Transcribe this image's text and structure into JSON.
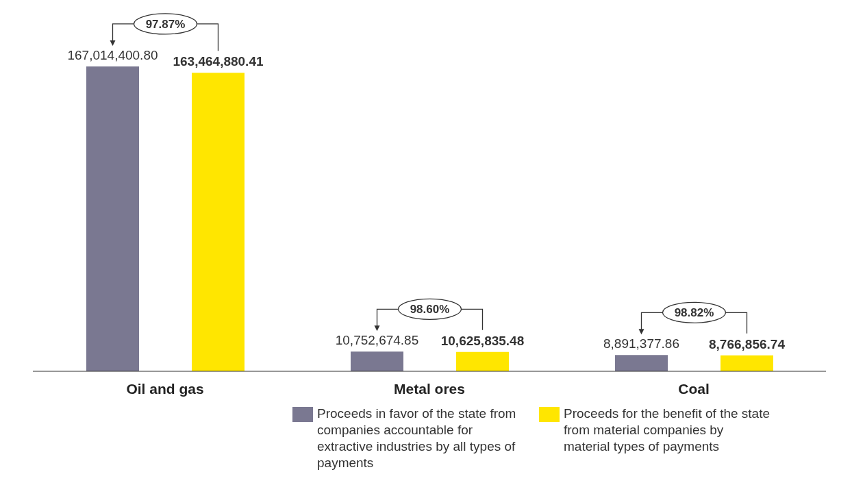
{
  "chart_data": {
    "type": "bar",
    "categories": [
      "Oil and gas",
      "Metal ores",
      "Coal"
    ],
    "series": [
      {
        "name": "Proceeds in favor of the state from companies accountable for extractive industries by all types of payments",
        "color": "#7a7891",
        "values": [
          167014400.8,
          10752674.85,
          8891377.86
        ],
        "value_labels": [
          "167,014,400.80",
          "10,752,674.85",
          "8,891,377.86"
        ]
      },
      {
        "name": "Proceeds for the benefit of the state from material companies by material types of payments",
        "color": "#ffe600",
        "values": [
          163464880.41,
          10625835.48,
          8766856.74
        ],
        "value_labels": [
          "163,464,880.41",
          "10,625,835.48",
          "8,766,856.74"
        ]
      }
    ],
    "annotations": [
      "97.87%",
      "98.60%",
      "98.82%"
    ],
    "legend": "bottom",
    "grid": false
  }
}
